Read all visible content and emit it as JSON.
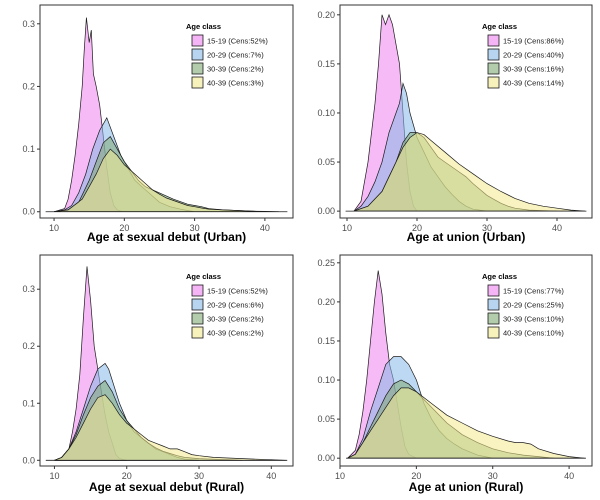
{
  "figure": {
    "legend_title": "Age class",
    "colors": [
      "#ee82ee",
      "#87b8e8",
      "#7faa74",
      "#f2e98e"
    ]
  },
  "chart_data": [
    {
      "type": "area",
      "xlabel": "Age at sexual debut (Urban)",
      "xlim": [
        8,
        44
      ],
      "ylim": [
        -0.01,
        0.33
      ],
      "xticks": [
        10,
        20,
        30,
        40
      ],
      "yticks": [
        0.0,
        0.1,
        0.2,
        0.3
      ],
      "ytick_labels": [
        "0.0",
        "0.1",
        "0.2",
        "0.3"
      ],
      "legend_title": "Age class",
      "grid": false,
      "legend_position": "top-right",
      "series": [
        {
          "name": "15-19 (Cens:52%)",
          "color": "#ee82ee",
          "x": [
            10,
            11.5,
            12,
            12.5,
            13,
            13.5,
            14,
            14.3,
            14.6,
            15,
            15.3,
            15.6,
            16,
            16.5,
            17,
            17.5,
            18,
            18.5,
            19,
            19.5,
            20
          ],
          "y": [
            0,
            0.005,
            0.02,
            0.05,
            0.09,
            0.14,
            0.2,
            0.26,
            0.31,
            0.27,
            0.29,
            0.22,
            0.2,
            0.17,
            0.12,
            0.07,
            0.03,
            0.01,
            0.003,
            0.001,
            0
          ]
        },
        {
          "name": "20-29 (Cens:7%)",
          "color": "#87b8e8",
          "x": [
            10,
            11.5,
            12.5,
            13.5,
            14.5,
            15.5,
            16.5,
            17.5,
            18.5,
            19.5,
            20.5,
            21.5,
            22.5,
            23.5,
            25,
            26.5,
            28,
            29,
            30
          ],
          "y": [
            0,
            0.003,
            0.01,
            0.03,
            0.06,
            0.1,
            0.13,
            0.15,
            0.12,
            0.09,
            0.07,
            0.05,
            0.04,
            0.03,
            0.015,
            0.008,
            0.004,
            0.002,
            0
          ]
        },
        {
          "name": "30-39 (Cens:2%)",
          "color": "#7faa74",
          "x": [
            10,
            12,
            13.5,
            15,
            16,
            17,
            18,
            19,
            20,
            21,
            22,
            23,
            24,
            25,
            26,
            27,
            28,
            29,
            30,
            31,
            32,
            34,
            36,
            38,
            40
          ],
          "y": [
            0,
            0.003,
            0.015,
            0.05,
            0.08,
            0.11,
            0.12,
            0.1,
            0.08,
            0.065,
            0.05,
            0.04,
            0.035,
            0.03,
            0.025,
            0.02,
            0.016,
            0.012,
            0.01,
            0.008,
            0.005,
            0.003,
            0.002,
            0.001,
            0
          ]
        },
        {
          "name": "40-39 (Cens:3%)",
          "color": "#f2e98e",
          "x": [
            10,
            12,
            14,
            15,
            16,
            17,
            18,
            19,
            20,
            21,
            22,
            23,
            24,
            25,
            26,
            27,
            28,
            29,
            30,
            31,
            32,
            34,
            36,
            38,
            40,
            42
          ],
          "y": [
            0,
            0.003,
            0.02,
            0.04,
            0.06,
            0.085,
            0.1,
            0.09,
            0.075,
            0.065,
            0.055,
            0.045,
            0.035,
            0.028,
            0.022,
            0.018,
            0.014,
            0.01,
            0.008,
            0.006,
            0.004,
            0.003,
            0.002,
            0.001,
            0.0005,
            0
          ]
        }
      ]
    },
    {
      "type": "area",
      "xlabel": "Age at union (Urban)",
      "xlim": [
        9,
        45
      ],
      "ylim": [
        -0.007,
        0.21
      ],
      "xticks": [
        10,
        20,
        30,
        40
      ],
      "yticks": [
        0.0,
        0.05,
        0.1,
        0.15,
        0.2
      ],
      "ytick_labels": [
        "0.00",
        "0.05",
        "0.10",
        "0.15",
        "0.20"
      ],
      "legend_title": "Age class",
      "grid": false,
      "legend_position": "top-right",
      "series": [
        {
          "name": "15-19 (Cens:86%)",
          "color": "#ee82ee",
          "x": [
            11,
            12,
            13,
            14,
            14.5,
            15,
            15.5,
            16,
            16.5,
            17,
            17.5,
            18,
            18.5,
            19,
            19.5,
            20
          ],
          "y": [
            0,
            0.01,
            0.05,
            0.11,
            0.15,
            0.2,
            0.19,
            0.2,
            0.19,
            0.17,
            0.15,
            0.1,
            0.05,
            0.02,
            0.005,
            0
          ]
        },
        {
          "name": "20-29 (Cens:40%)",
          "color": "#87b8e8",
          "x": [
            11,
            12,
            13,
            14,
            15,
            16,
            17,
            17.5,
            18,
            18.5,
            19,
            20,
            21,
            22,
            23,
            24,
            25,
            26,
            27,
            28,
            30
          ],
          "y": [
            0,
            0.005,
            0.015,
            0.03,
            0.05,
            0.08,
            0.1,
            0.11,
            0.13,
            0.12,
            0.1,
            0.075,
            0.06,
            0.045,
            0.035,
            0.025,
            0.017,
            0.01,
            0.005,
            0.002,
            0
          ]
        },
        {
          "name": "30-39 (Cens:16%)",
          "color": "#7faa74",
          "x": [
            11,
            13,
            15,
            16,
            17,
            18,
            19,
            20,
            21,
            22,
            23,
            24,
            25,
            26,
            27,
            28,
            29,
            30,
            31,
            32,
            33,
            34,
            36,
            38,
            40
          ],
          "y": [
            0,
            0.005,
            0.02,
            0.035,
            0.05,
            0.07,
            0.08,
            0.08,
            0.075,
            0.065,
            0.055,
            0.05,
            0.045,
            0.04,
            0.035,
            0.028,
            0.022,
            0.016,
            0.012,
            0.008,
            0.005,
            0.003,
            0.001,
            0.0005,
            0
          ]
        },
        {
          "name": "40-39 (Cens:14%)",
          "color": "#f2e98e",
          "x": [
            11,
            13,
            15,
            16,
            17,
            18,
            19,
            20,
            21,
            22,
            24,
            26,
            28,
            30,
            32,
            34,
            36,
            38,
            40,
            42,
            44
          ],
          "y": [
            0,
            0.005,
            0.02,
            0.035,
            0.05,
            0.065,
            0.075,
            0.08,
            0.078,
            0.072,
            0.06,
            0.048,
            0.038,
            0.028,
            0.02,
            0.013,
            0.008,
            0.005,
            0.003,
            0.001,
            0
          ]
        }
      ]
    },
    {
      "type": "area",
      "xlabel": "Age at sexual debut (Rural)",
      "xlim": [
        8,
        43
      ],
      "ylim": [
        -0.01,
        0.36
      ],
      "xticks": [
        10,
        20,
        30,
        40
      ],
      "yticks": [
        0.0,
        0.1,
        0.2,
        0.3
      ],
      "ytick_labels": [
        "0.0",
        "0.1",
        "0.2",
        "0.3"
      ],
      "legend_title": "Age class",
      "grid": false,
      "legend_position": "top-right",
      "series": [
        {
          "name": "15-19 (Cens:52%)",
          "color": "#ee82ee",
          "x": [
            10,
            11,
            12,
            12.5,
            13,
            13.5,
            14,
            14.5,
            15,
            15.5,
            16,
            16.5,
            17,
            17.5,
            18,
            18.5,
            19,
            20
          ],
          "y": [
            0,
            0.005,
            0.02,
            0.05,
            0.09,
            0.15,
            0.25,
            0.34,
            0.28,
            0.2,
            0.16,
            0.12,
            0.08,
            0.05,
            0.03,
            0.01,
            0.003,
            0
          ]
        },
        {
          "name": "20-29 (Cens:6%)",
          "color": "#87b8e8",
          "x": [
            10,
            11,
            12,
            13,
            14,
            15,
            16,
            17,
            17.5,
            18,
            19,
            20,
            21,
            22,
            23,
            24,
            25,
            26,
            27,
            28,
            30
          ],
          "y": [
            0,
            0.005,
            0.02,
            0.05,
            0.09,
            0.13,
            0.16,
            0.17,
            0.16,
            0.14,
            0.1,
            0.07,
            0.05,
            0.04,
            0.03,
            0.02,
            0.015,
            0.01,
            0.005,
            0.002,
            0
          ]
        },
        {
          "name": "30-39 (Cens:2%)",
          "color": "#7faa74",
          "x": [
            10,
            11,
            12,
            13,
            14,
            15,
            16,
            17,
            18,
            19,
            20,
            21,
            22,
            23,
            24,
            25,
            26,
            27,
            28,
            30,
            32,
            34,
            36
          ],
          "y": [
            0,
            0.005,
            0.02,
            0.045,
            0.08,
            0.11,
            0.13,
            0.14,
            0.12,
            0.09,
            0.07,
            0.055,
            0.04,
            0.03,
            0.022,
            0.016,
            0.012,
            0.008,
            0.005,
            0.003,
            0.002,
            0.001,
            0
          ]
        },
        {
          "name": "40-39 (Cens:2%)",
          "color": "#f2e98e",
          "x": [
            10,
            11,
            12,
            13,
            14,
            15,
            16,
            17,
            18,
            19,
            20,
            21,
            22,
            23,
            24,
            25,
            26,
            27,
            28,
            29,
            30,
            32,
            34,
            36,
            38,
            40,
            42
          ],
          "y": [
            0,
            0.005,
            0.02,
            0.04,
            0.065,
            0.09,
            0.11,
            0.115,
            0.1,
            0.08,
            0.065,
            0.055,
            0.045,
            0.035,
            0.03,
            0.025,
            0.02,
            0.02,
            0.015,
            0.01,
            0.008,
            0.005,
            0.004,
            0.003,
            0.002,
            0.001,
            0
          ]
        }
      ]
    },
    {
      "type": "area",
      "xlabel": "Age at union (Rural)",
      "xlim": [
        10,
        43
      ],
      "ylim": [
        -0.01,
        0.26
      ],
      "xticks": [
        10,
        20,
        30,
        40
      ],
      "yticks": [
        0.0,
        0.05,
        0.1,
        0.15,
        0.2,
        0.25
      ],
      "ytick_labels": [
        "0.00",
        "0.05",
        "0.10",
        "0.15",
        "0.20",
        "0.25"
      ],
      "legend_title": "Age class",
      "grid": false,
      "legend_position": "top-right",
      "series": [
        {
          "name": "15-19 (Cens:77%)",
          "color": "#ee82ee",
          "x": [
            11,
            12,
            12.5,
            13,
            13.5,
            14,
            14.5,
            15,
            15.5,
            16,
            16.5,
            17,
            17.5,
            18,
            18.5,
            19,
            20
          ],
          "y": [
            0,
            0.01,
            0.03,
            0.06,
            0.1,
            0.15,
            0.2,
            0.24,
            0.21,
            0.16,
            0.12,
            0.1,
            0.07,
            0.04,
            0.015,
            0.005,
            0
          ]
        },
        {
          "name": "20-29 (Cens:25%)",
          "color": "#87b8e8",
          "x": [
            11,
            12,
            13,
            14,
            15,
            16,
            17,
            18,
            19,
            20,
            21,
            22,
            23,
            24,
            25,
            26,
            27,
            28,
            29,
            30
          ],
          "y": [
            0,
            0.005,
            0.025,
            0.06,
            0.09,
            0.12,
            0.13,
            0.13,
            0.12,
            0.1,
            0.07,
            0.05,
            0.035,
            0.025,
            0.018,
            0.012,
            0.008,
            0.004,
            0.002,
            0
          ]
        },
        {
          "name": "30-39 (Cens:10%)",
          "color": "#7faa74",
          "x": [
            11,
            12,
            13,
            14,
            15,
            16,
            17,
            18,
            19,
            20,
            21,
            22,
            23,
            24,
            26,
            28,
            30,
            32,
            34,
            36,
            38
          ],
          "y": [
            0,
            0.005,
            0.02,
            0.04,
            0.06,
            0.08,
            0.095,
            0.1,
            0.095,
            0.085,
            0.075,
            0.065,
            0.055,
            0.045,
            0.03,
            0.02,
            0.012,
            0.007,
            0.004,
            0.002,
            0
          ]
        },
        {
          "name": "40-39 (Cens:10%)",
          "color": "#f2e98e",
          "x": [
            11,
            12,
            13,
            14,
            15,
            16,
            17,
            18,
            19,
            20,
            22,
            24,
            26,
            28,
            30,
            32,
            33,
            34,
            35,
            36,
            38,
            40,
            42
          ],
          "y": [
            0,
            0.005,
            0.02,
            0.035,
            0.05,
            0.065,
            0.08,
            0.09,
            0.09,
            0.085,
            0.07,
            0.055,
            0.045,
            0.035,
            0.028,
            0.022,
            0.02,
            0.02,
            0.018,
            0.012,
            0.006,
            0.002,
            0
          ]
        }
      ]
    }
  ]
}
